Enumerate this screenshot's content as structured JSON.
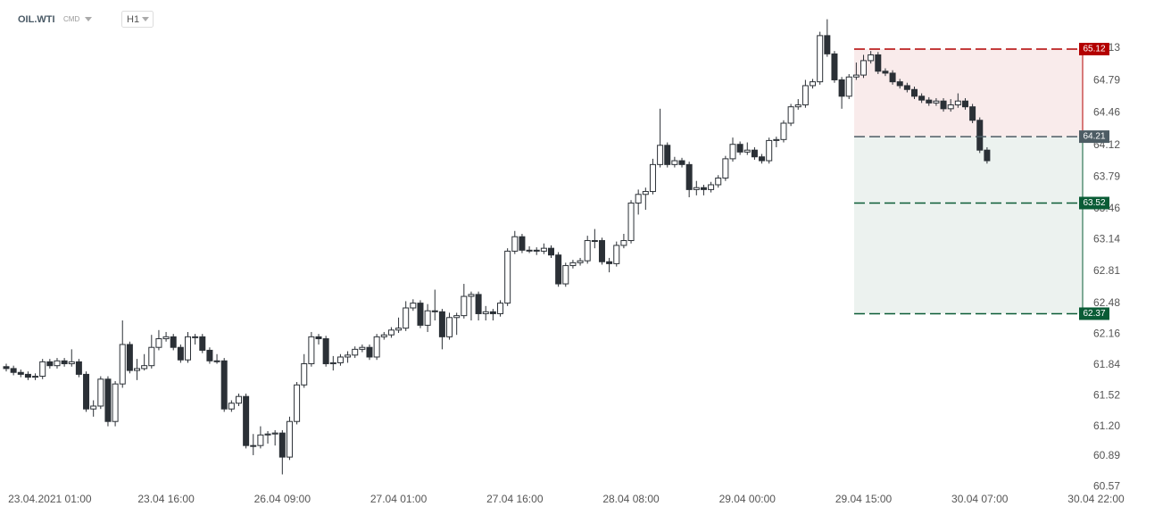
{
  "chart_data": {
    "type": "candlestick",
    "symbol": "OIL.WTI",
    "market": "CMD",
    "interval": "H1",
    "categories": [
      null,
      null,
      null,
      null,
      null,
      null,
      "23.04.2021 01:00",
      null,
      null,
      null,
      null,
      null,
      null,
      null,
      null,
      null,
      null,
      null,
      null,
      null,
      null,
      null,
      "23.04 16:00",
      null,
      null,
      null,
      null,
      null,
      null,
      null,
      null,
      null,
      null,
      null,
      null,
      null,
      null,
      null,
      "26.04 09:00",
      null,
      null,
      null,
      null,
      null,
      null,
      null,
      null,
      null,
      null,
      null,
      null,
      null,
      null,
      null,
      "27.04 01:00",
      null,
      null,
      null,
      null,
      null,
      null,
      null,
      null,
      null,
      null,
      null,
      null,
      null,
      null,
      null,
      "27.04 16:00",
      null,
      null,
      null,
      null,
      null,
      null,
      null,
      null,
      null,
      null,
      null,
      null,
      null,
      null,
      null,
      "28.04 08:00",
      null,
      null,
      null,
      null,
      null,
      null,
      null,
      null,
      null,
      null,
      null,
      null,
      null,
      null,
      null,
      "29.04 00:00",
      null,
      null,
      null,
      null,
      null,
      null,
      null,
      null,
      null,
      null,
      null,
      null,
      null,
      null,
      null,
      "29.04 15:00",
      null,
      null,
      null,
      null,
      null,
      null,
      null,
      null,
      null,
      null,
      null,
      null,
      null,
      null,
      null,
      "30.04 07:00",
      null,
      null,
      null,
      null,
      null,
      null,
      null,
      null,
      null,
      null,
      null,
      null,
      null,
      null,
      null,
      "30.04 22:00"
    ],
    "open": [
      61.82,
      61.8,
      61.76,
      61.74,
      61.71,
      61.72,
      61.87,
      61.83,
      61.88,
      61.85,
      61.87,
      61.74,
      61.38,
      61.41,
      61.69,
      61.25,
      61.64,
      62.05,
      61.78,
      61.8,
      61.83,
      62.02,
      62.11,
      62.13,
      62.02,
      61.89,
      62.13,
      62.13,
      61.99,
      61.88,
      61.88,
      61.38,
      61.44,
      61.51,
      61.0,
      61.0,
      61.11,
      61.12,
      61.13,
      60.88,
      61.25,
      61.63,
      61.85,
      62.13,
      62.11,
      61.85,
      61.86,
      61.92,
      61.94,
      62.0,
      62.02,
      61.92,
      62.13,
      62.15,
      62.2,
      62.22,
      62.43,
      62.48,
      62.25,
      62.4,
      62.39,
      62.13,
      62.33,
      62.35,
      62.55,
      62.57,
      62.37,
      62.39,
      62.37,
      62.48,
      63.02,
      63.17,
      63.03,
      63.03,
      63.02,
      63.05,
      62.98,
      62.68,
      62.87,
      62.9,
      62.92,
      63.13,
      63.13,
      62.91,
      62.89,
      63.08,
      63.13,
      63.52,
      63.61,
      63.64,
      63.92,
      64.12,
      63.92,
      63.96,
      63.92,
      63.66,
      63.68,
      63.66,
      63.71,
      63.78,
      63.98,
      64.13,
      64.05,
      64.07,
      64.0,
      63.96,
      64.17,
      64.18,
      64.35,
      64.52,
      64.54,
      64.74,
      64.78,
      65.26,
      65.07,
      64.8,
      64.63,
      64.83,
      64.85,
      65.0,
      65.06,
      64.89,
      64.87,
      64.78,
      64.74,
      64.7,
      64.63,
      64.59,
      64.56,
      64.58,
      64.5,
      64.54,
      64.58,
      64.52,
      64.38,
      64.07,
      null,
      null,
      null,
      null,
      null,
      null,
      null,
      null,
      null,
      null,
      null,
      null,
      null,
      null,
      null
    ],
    "high": [
      61.85,
      61.83,
      61.79,
      61.77,
      61.75,
      61.9,
      61.9,
      61.91,
      61.91,
      62.0,
      61.9,
      61.77,
      61.47,
      61.72,
      61.72,
      61.67,
      62.3,
      62.08,
      61.9,
      61.95,
      62.15,
      62.2,
      62.18,
      62.16,
      62.05,
      62.18,
      62.16,
      62.16,
      62.02,
      61.95,
      61.91,
      61.47,
      61.54,
      61.54,
      61.12,
      61.2,
      61.15,
      61.16,
      61.16,
      61.3,
      61.66,
      61.95,
      62.18,
      62.16,
      62.14,
      61.93,
      61.95,
      61.98,
      62.03,
      62.05,
      62.05,
      62.16,
      62.18,
      62.23,
      62.33,
      62.5,
      62.52,
      62.51,
      62.47,
      62.62,
      62.42,
      62.38,
      62.38,
      62.68,
      62.6,
      62.6,
      62.45,
      62.42,
      62.51,
      63.05,
      63.23,
      63.2,
      63.07,
      63.06,
      63.1,
      63.08,
      63.01,
      62.9,
      62.93,
      62.95,
      63.18,
      63.25,
      63.16,
      62.95,
      63.12,
      63.2,
      63.55,
      63.66,
      63.68,
      63.98,
      64.5,
      64.15,
      64.0,
      63.99,
      63.95,
      63.75,
      63.71,
      63.74,
      63.81,
      64.01,
      64.2,
      64.16,
      64.15,
      64.1,
      64.03,
      64.2,
      64.21,
      64.38,
      64.55,
      64.6,
      64.8,
      64.81,
      65.3,
      65.43,
      65.1,
      64.83,
      64.86,
      64.98,
      65.06,
      65.1,
      65.09,
      64.92,
      64.9,
      64.81,
      64.77,
      64.73,
      64.66,
      64.62,
      64.61,
      64.61,
      64.6,
      64.66,
      64.61,
      64.55,
      64.41,
      64.1,
      null,
      null,
      null,
      null,
      null,
      null,
      null,
      null,
      null,
      null,
      null,
      null,
      null,
      null,
      null
    ],
    "low": [
      61.77,
      61.73,
      61.71,
      61.68,
      61.68,
      61.69,
      61.8,
      61.8,
      61.82,
      61.82,
      61.71,
      61.35,
      61.3,
      61.38,
      61.2,
      61.2,
      61.6,
      61.75,
      61.68,
      61.78,
      61.8,
      61.99,
      62.08,
      61.99,
      61.86,
      61.86,
      62.05,
      61.96,
      61.85,
      61.85,
      61.35,
      61.35,
      61.41,
      60.97,
      60.9,
      60.97,
      61.02,
      61.0,
      60.7,
      60.85,
      61.22,
      61.6,
      61.82,
      62.05,
      61.82,
      61.78,
      61.83,
      61.86,
      61.91,
      61.97,
      61.89,
      61.89,
      62.1,
      62.12,
      62.17,
      62.19,
      62.4,
      62.22,
      62.18,
      62.3,
      62.0,
      62.1,
      62.15,
      62.32,
      62.3,
      62.3,
      62.3,
      62.3,
      62.34,
      62.45,
      62.99,
      63.0,
      63.0,
      62.98,
      62.99,
      62.95,
      62.65,
      62.65,
      62.84,
      62.87,
      62.89,
      63.05,
      62.88,
      62.8,
      62.86,
      63.05,
      63.1,
      63.4,
      63.45,
      63.61,
      63.89,
      63.89,
      63.89,
      63.89,
      63.58,
      63.6,
      63.6,
      63.63,
      63.68,
      63.75,
      63.95,
      64.02,
      64.02,
      63.97,
      63.93,
      63.93,
      64.1,
      64.15,
      64.32,
      64.49,
      64.51,
      64.71,
      64.75,
      65.04,
      64.77,
      64.5,
      64.6,
      64.8,
      64.82,
      64.97,
      64.86,
      64.84,
      64.75,
      64.71,
      64.67,
      64.6,
      64.56,
      64.53,
      64.53,
      64.47,
      64.47,
      64.51,
      64.49,
      64.35,
      64.04,
      63.93,
      null,
      null,
      null,
      null,
      null,
      null,
      null,
      null,
      null,
      null,
      null,
      null,
      null,
      null,
      null
    ],
    "close": [
      61.8,
      61.76,
      61.74,
      61.71,
      61.72,
      61.87,
      61.83,
      61.88,
      61.85,
      61.87,
      61.74,
      61.38,
      61.41,
      61.69,
      61.25,
      61.64,
      62.05,
      61.78,
      61.8,
      61.83,
      62.02,
      62.11,
      62.13,
      62.02,
      61.89,
      62.13,
      62.13,
      61.99,
      61.88,
      61.88,
      61.38,
      61.44,
      61.51,
      61.0,
      61.0,
      61.11,
      61.12,
      61.13,
      60.88,
      61.25,
      61.63,
      61.85,
      62.13,
      62.11,
      61.85,
      61.86,
      61.92,
      61.94,
      62.0,
      62.02,
      61.92,
      62.13,
      62.15,
      62.2,
      62.22,
      62.43,
      62.48,
      62.25,
      62.4,
      62.39,
      62.13,
      62.33,
      62.35,
      62.55,
      62.57,
      62.37,
      62.39,
      62.37,
      62.48,
      63.02,
      63.17,
      63.03,
      63.03,
      63.02,
      63.05,
      62.98,
      62.68,
      62.87,
      62.9,
      62.92,
      63.13,
      63.13,
      62.91,
      62.89,
      63.08,
      63.13,
      63.52,
      63.61,
      63.64,
      63.92,
      64.12,
      63.92,
      63.96,
      63.92,
      63.66,
      63.68,
      63.66,
      63.71,
      63.78,
      63.98,
      64.13,
      64.05,
      64.07,
      64.0,
      63.96,
      64.17,
      64.18,
      64.35,
      64.52,
      64.54,
      64.74,
      64.78,
      65.26,
      65.07,
      64.8,
      64.63,
      64.83,
      64.85,
      65.0,
      65.06,
      64.89,
      64.87,
      64.78,
      64.74,
      64.7,
      64.63,
      64.59,
      64.56,
      64.58,
      64.5,
      64.54,
      64.58,
      64.52,
      64.38,
      64.07,
      63.96,
      null,
      null,
      null,
      null,
      null,
      null,
      null,
      null,
      null,
      null,
      null,
      null,
      null,
      null,
      null
    ],
    "up_color": "#ffffff",
    "down_color": "#2b3036",
    "wick_color": "#2b3036",
    "levels": [
      {
        "value": 65.12,
        "color": "#b30000"
      },
      {
        "value": 64.21,
        "color": "#4d5c64"
      },
      {
        "value": 63.52,
        "color": "#0a5c36"
      },
      {
        "value": 62.37,
        "color": "#0a5c36"
      }
    ],
    "ylim": [
      60.51,
      65.63
    ],
    "yticks": [
      65.13,
      64.79,
      64.46,
      64.12,
      63.79,
      63.46,
      63.14,
      62.81,
      62.48,
      62.16,
      61.84,
      61.52,
      {
        "value": 61.2,
        "label": "61.20"
      },
      60.89,
      60.57
    ]
  }
}
